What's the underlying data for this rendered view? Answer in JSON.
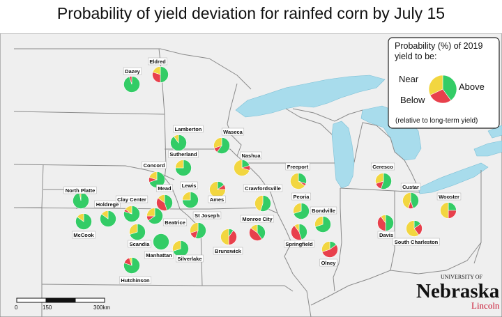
{
  "title": "Probability of yield deviation for rainfed corn by July 15",
  "legend": {
    "heading_line1": "Probability (%) of 2019",
    "heading_line2": "yield to be:",
    "near": "Near",
    "below": "Below",
    "above": "Above",
    "note": "(relative to long-term yield)"
  },
  "colors": {
    "above": "#33cc66",
    "near": "#f2d640",
    "below": "#e8404c",
    "water": "#a8dcec",
    "land": "#efefef",
    "border": "#8a8a8a"
  },
  "scale": {
    "labels": [
      "0",
      "150",
      "300km"
    ]
  },
  "logo": {
    "university_of": "UNIVERSITY OF",
    "nebraska": "Nebraska",
    "lincoln": "Lincoln"
  },
  "sites": [
    {
      "name": "Eldred",
      "above": 50,
      "near": 20,
      "below": 30
    },
    {
      "name": "Dazey",
      "above": 95,
      "near": 0,
      "below": 5
    },
    {
      "name": "Lamberton",
      "above": 90,
      "near": 10,
      "below": 0
    },
    {
      "name": "Waseca",
      "above": 60,
      "near": 30,
      "below": 10
    },
    {
      "name": "Sutherland",
      "above": 75,
      "near": 25,
      "below": 0
    },
    {
      "name": "Nashua",
      "above": 20,
      "near": 70,
      "below": 10
    },
    {
      "name": "Concord",
      "above": 70,
      "near": 20,
      "below": 10
    },
    {
      "name": "Mead",
      "above": 45,
      "near": 15,
      "below": 40
    },
    {
      "name": "Lewis",
      "above": 75,
      "near": 25,
      "below": 0
    },
    {
      "name": "Ames",
      "above": 15,
      "near": 75,
      "below": 10
    },
    {
      "name": "Freeport",
      "above": 30,
      "near": 65,
      "below": 5
    },
    {
      "name": "Crawfordsville",
      "above": 55,
      "near": 45,
      "below": 0
    },
    {
      "name": "Ceresco",
      "above": 55,
      "near": 30,
      "below": 15
    },
    {
      "name": "Custar",
      "above": 45,
      "near": 45,
      "below": 10
    },
    {
      "name": "Wooster",
      "above": 25,
      "near": 50,
      "below": 25
    },
    {
      "name": "North Platte",
      "above": 97,
      "near": 3,
      "below": 0
    },
    {
      "name": "Holdrege",
      "above": 85,
      "near": 15,
      "below": 0
    },
    {
      "name": "Clay Center",
      "above": 80,
      "near": 15,
      "below": 5
    },
    {
      "name": "McCook",
      "above": 85,
      "near": 15,
      "below": 0
    },
    {
      "name": "Beatrice",
      "above": 65,
      "near": 25,
      "below": 10
    },
    {
      "name": "St Joseph",
      "above": 55,
      "near": 30,
      "below": 15
    },
    {
      "name": "Peoria",
      "above": 70,
      "near": 30,
      "below": 0
    },
    {
      "name": "Bondville",
      "above": 70,
      "near": 30,
      "below": 0
    },
    {
      "name": "Monroe City",
      "above": 40,
      "near": 15,
      "below": 45
    },
    {
      "name": "Brunswick",
      "above": 10,
      "near": 50,
      "below": 40
    },
    {
      "name": "Scandia",
      "above": 70,
      "near": 30,
      "below": 0
    },
    {
      "name": "Manhattan",
      "above": 100,
      "near": 0,
      "below": 0
    },
    {
      "name": "Silverlake",
      "above": 70,
      "near": 30,
      "below": 0
    },
    {
      "name": "Springfield",
      "above": 45,
      "near": 10,
      "below": 45
    },
    {
      "name": "Davis",
      "above": 50,
      "near": 10,
      "below": 40
    },
    {
      "name": "South Charleston",
      "above": 15,
      "near": 60,
      "below": 25
    },
    {
      "name": "Olney",
      "above": 15,
      "near": 30,
      "below": 55
    },
    {
      "name": "Hutchinson",
      "above": 80,
      "near": 5,
      "below": 15
    }
  ]
}
